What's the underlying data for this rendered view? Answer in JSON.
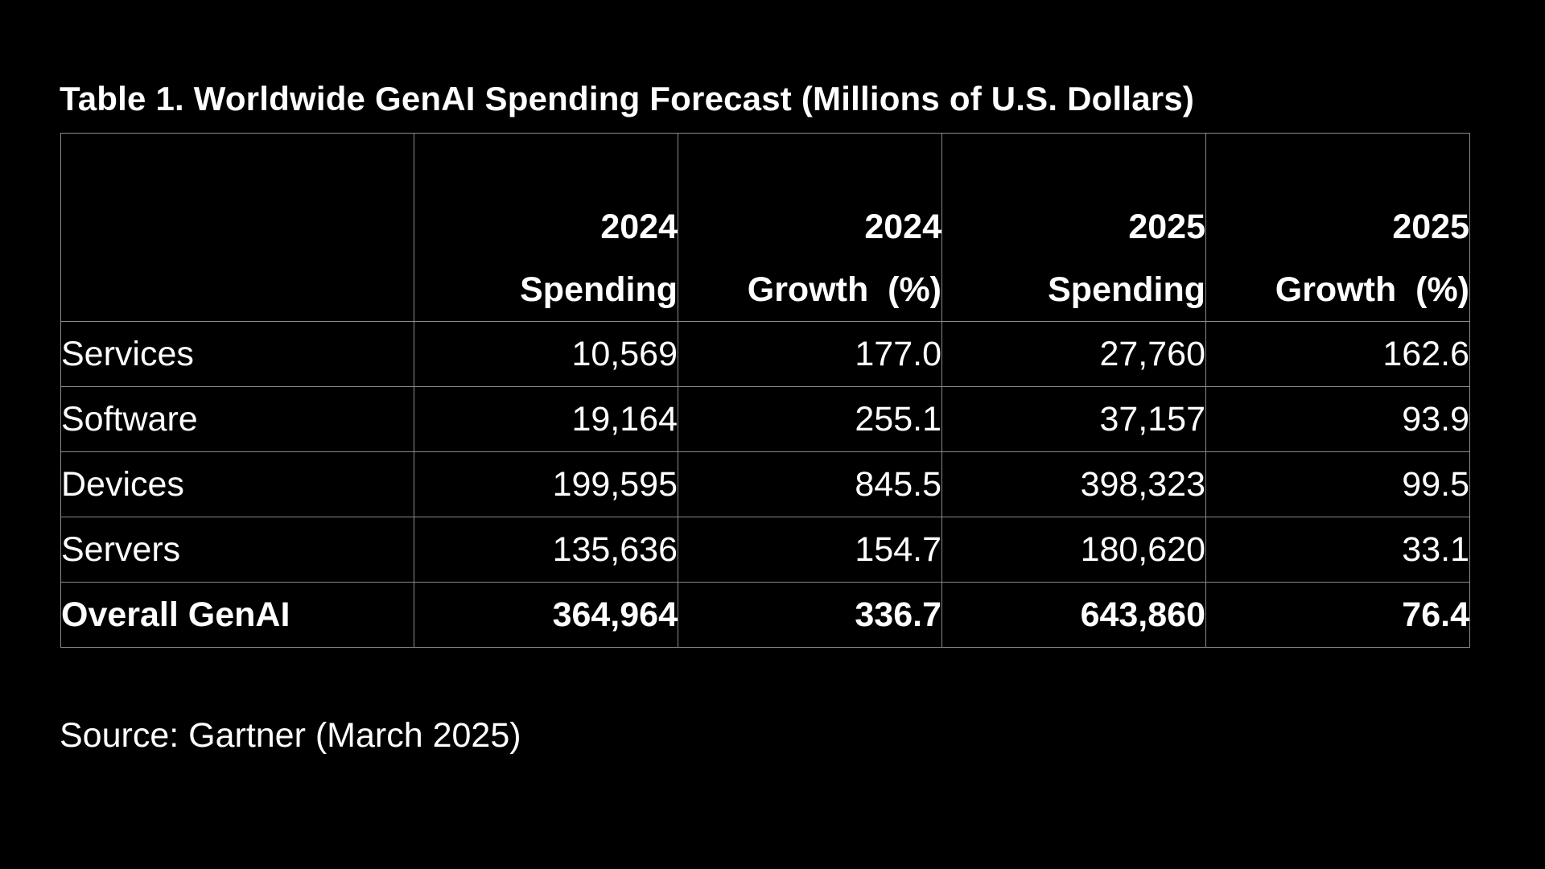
{
  "title": "Table 1. Worldwide GenAI Spending Forecast (Millions of U.S. Dollars)",
  "table": {
    "headers": [
      {
        "line1": "",
        "line2": ""
      },
      {
        "line1": "2024",
        "line2": "Spending"
      },
      {
        "line1": "2024",
        "line2": "Growth  (%)"
      },
      {
        "line1": "2025",
        "line2": "Spending"
      },
      {
        "line1": "2025",
        "line2": "Growth  (%)"
      }
    ],
    "rows": [
      {
        "label": "Services",
        "cells": [
          "10,569",
          "177.0",
          "27,760",
          "162.6"
        ]
      },
      {
        "label": "Software",
        "cells": [
          "19,164",
          "255.1",
          "37,157",
          "93.9"
        ]
      },
      {
        "label": "Devices",
        "cells": [
          "199,595",
          "845.5",
          "398,323",
          "99.5"
        ]
      },
      {
        "label": "Servers",
        "cells": [
          "135,636",
          "154.7",
          "180,620",
          "33.1"
        ]
      },
      {
        "label": "Overall GenAI",
        "cells": [
          "364,964",
          "336.7",
          "643,860",
          "76.4"
        ]
      }
    ]
  },
  "source": "Source: Gartner (March 2025)"
}
